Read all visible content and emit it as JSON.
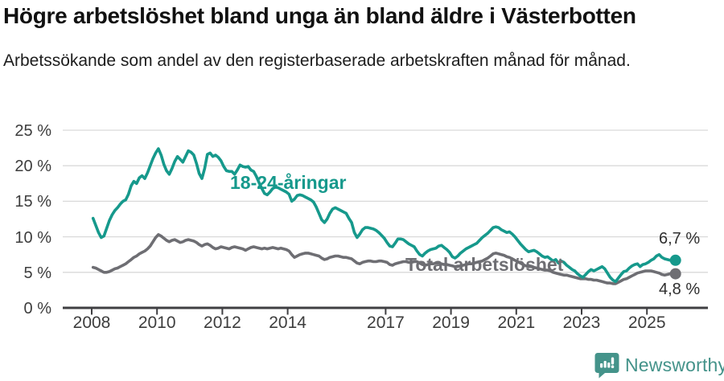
{
  "header": {
    "title": "Högre arbetslöshet bland unga än bland äldre i Västerbotten",
    "subtitle": "Arbetssökande som andel av den registerbaserade arbetskraften månad för månad."
  },
  "chart_data": {
    "type": "line",
    "title": "Högre arbetslöshet bland unga än bland äldre i Västerbotten",
    "subtitle": "Arbetssökande som andel av den registerbaserade arbetskraften månad för månad.",
    "unit": "%",
    "grid": "horizontal",
    "legend_position": "inline-labels",
    "ylim": [
      0,
      25
    ],
    "ytick_values": [
      0,
      5,
      10,
      15,
      20,
      25
    ],
    "ytick_labels": [
      "0 %",
      "5 %",
      "10 %",
      "15 %",
      "20 %",
      "25 %"
    ],
    "xtick_years": [
      2008,
      2010,
      2012,
      2014,
      2017,
      2019,
      2021,
      2023,
      2025
    ],
    "xtick_labels": [
      "2008",
      "2010",
      "2012",
      "2014",
      "2017",
      "2019",
      "2021",
      "2023",
      "2025"
    ],
    "x_start_year": 2008,
    "x_start_month": 1,
    "x_resolution": "monthly",
    "series": [
      {
        "name": "18-24-åringar",
        "label_text": "18-24-åringar",
        "end_label": "6,7 %",
        "end_value": 6.7,
        "color": "#16998c",
        "values": [
          12.6,
          11.6,
          10.6,
          9.9,
          10.1,
          11.2,
          12.3,
          13.1,
          13.7,
          14.1,
          14.6,
          15.0,
          15.2,
          16.0,
          17.2,
          17.8,
          17.5,
          18.3,
          18.6,
          18.2,
          19.0,
          20.0,
          21.0,
          21.8,
          22.4,
          21.5,
          20.2,
          19.3,
          18.8,
          19.6,
          20.6,
          21.3,
          20.9,
          20.5,
          21.3,
          22.1,
          21.9,
          21.5,
          20.3,
          18.9,
          18.2,
          19.6,
          21.6,
          21.8,
          21.3,
          21.5,
          21.2,
          20.7,
          19.9,
          19.3,
          19.2,
          19.2,
          18.8,
          19.4,
          20.1,
          19.9,
          19.8,
          19.9,
          19.4,
          19.2,
          18.5,
          17.6,
          16.8,
          16.1,
          15.9,
          16.3,
          16.8,
          17.0,
          16.9,
          16.7,
          16.5,
          16.3,
          16.0,
          15.0,
          15.3,
          15.8,
          15.9,
          15.8,
          15.6,
          15.4,
          15.2,
          14.9,
          14.2,
          13.3,
          12.4,
          12.0,
          12.5,
          13.3,
          13.9,
          14.1,
          13.9,
          13.7,
          13.5,
          13.3,
          12.6,
          12.0,
          10.6,
          9.9,
          10.4,
          11.0,
          11.3,
          11.3,
          11.2,
          11.1,
          10.9,
          10.6,
          10.2,
          9.8,
          9.2,
          8.7,
          8.6,
          9.1,
          9.7,
          9.7,
          9.6,
          9.3,
          9.0,
          8.8,
          8.6,
          8.0,
          7.5,
          7.3,
          7.7,
          8.0,
          8.2,
          8.3,
          8.4,
          8.7,
          8.8,
          8.5,
          8.2,
          7.8,
          7.2,
          7.0,
          7.3,
          7.7,
          8.0,
          8.3,
          8.5,
          8.7,
          8.9,
          9.1,
          9.5,
          9.9,
          10.2,
          10.5,
          10.9,
          11.3,
          11.4,
          11.3,
          11.0,
          10.8,
          10.6,
          10.7,
          10.4,
          10.0,
          9.5,
          9.0,
          8.6,
          8.2,
          7.9,
          8.0,
          8.1,
          7.9,
          7.6,
          7.3,
          7.1,
          7.2,
          6.9,
          6.6,
          6.8,
          6.3,
          6.6,
          6.4,
          6.0,
          5.7,
          5.4,
          5.2,
          4.8,
          4.5,
          4.3,
          4.7,
          5.1,
          5.4,
          5.2,
          5.4,
          5.6,
          5.8,
          5.5,
          4.9,
          4.3,
          3.9,
          3.7,
          4.2,
          4.7,
          5.1,
          5.2,
          5.6,
          5.9,
          6.1,
          6.2,
          5.8,
          6.1,
          6.2,
          6.4,
          6.7,
          6.9,
          7.3,
          7.5,
          7.1,
          6.9,
          6.8,
          6.7,
          6.7,
          6.7
        ]
      },
      {
        "name": "Total arbetslöshet",
        "label_text": "Total arbetslöshet",
        "end_label": "4,8 %",
        "end_value": 4.8,
        "color": "#6e6e73",
        "values": [
          5.7,
          5.6,
          5.4,
          5.2,
          5.0,
          5.0,
          5.1,
          5.3,
          5.5,
          5.6,
          5.8,
          6.0,
          6.2,
          6.5,
          6.8,
          7.1,
          7.3,
          7.6,
          7.8,
          8.0,
          8.3,
          8.7,
          9.3,
          9.9,
          10.3,
          10.1,
          9.8,
          9.5,
          9.3,
          9.5,
          9.6,
          9.4,
          9.2,
          9.3,
          9.5,
          9.6,
          9.5,
          9.4,
          9.2,
          8.9,
          8.7,
          8.9,
          9.0,
          8.8,
          8.5,
          8.3,
          8.4,
          8.6,
          8.5,
          8.4,
          8.3,
          8.5,
          8.6,
          8.5,
          8.4,
          8.3,
          8.1,
          8.3,
          8.5,
          8.6,
          8.5,
          8.4,
          8.3,
          8.4,
          8.3,
          8.4,
          8.5,
          8.4,
          8.3,
          8.4,
          8.3,
          8.2,
          8.0,
          7.5,
          7.1,
          7.3,
          7.5,
          7.6,
          7.7,
          7.7,
          7.6,
          7.5,
          7.4,
          7.3,
          7.0,
          6.8,
          6.9,
          7.1,
          7.2,
          7.3,
          7.3,
          7.2,
          7.1,
          7.1,
          7.0,
          6.9,
          6.6,
          6.3,
          6.2,
          6.4,
          6.5,
          6.6,
          6.6,
          6.5,
          6.5,
          6.6,
          6.6,
          6.5,
          6.4,
          6.1,
          6.0,
          6.2,
          6.3,
          6.4,
          6.5,
          6.5,
          6.4,
          6.4,
          6.5,
          6.5,
          6.3,
          6.1,
          6.0,
          6.1,
          6.2,
          6.2,
          6.3,
          6.3,
          6.2,
          6.1,
          6.1,
          6.0,
          5.9,
          5.8,
          5.8,
          5.9,
          6.0,
          6.1,
          6.2,
          6.2,
          6.3,
          6.4,
          6.5,
          6.6,
          6.8,
          7.0,
          7.3,
          7.6,
          7.7,
          7.6,
          7.5,
          7.4,
          7.2,
          7.1,
          6.9,
          6.7,
          6.5,
          6.3,
          6.1,
          5.9,
          5.8,
          5.8,
          5.7,
          5.6,
          5.5,
          5.4,
          5.3,
          5.3,
          5.2,
          5.0,
          4.9,
          4.8,
          4.7,
          4.6,
          4.6,
          4.5,
          4.4,
          4.3,
          4.2,
          4.1,
          4.1,
          4.1,
          4.0,
          4.0,
          3.9,
          3.9,
          3.8,
          3.7,
          3.6,
          3.5,
          3.5,
          3.4,
          3.4,
          3.6,
          3.8,
          4.0,
          4.1,
          4.3,
          4.5,
          4.7,
          4.9,
          5.0,
          5.1,
          5.2,
          5.2,
          5.2,
          5.1,
          5.0,
          4.9,
          4.7,
          4.6,
          4.7,
          4.8,
          4.8,
          4.8
        ]
      }
    ]
  },
  "colors": {
    "youth_line": "#16998c",
    "total_line": "#6e6e73",
    "axis": "#3f3f42",
    "gridline": "#d9d9d9",
    "axis_text": "#3d3d3d",
    "brand_teal": "#44938a"
  },
  "footer": {
    "brand": "Newsworthy"
  }
}
